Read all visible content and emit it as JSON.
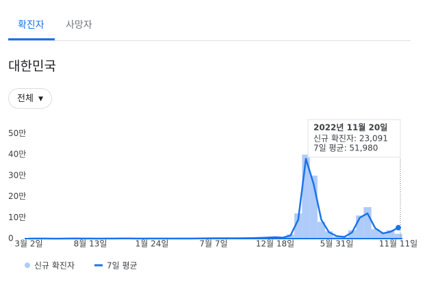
{
  "tabs": [
    "확진자",
    "사망자"
  ],
  "region": "대한민국",
  "filter": "전체",
  "chart_data": {
    "type": "area-line",
    "categories": [
      "3월 2일",
      null,
      null,
      null,
      null,
      null,
      null,
      null,
      "8월 13일",
      null,
      null,
      null,
      null,
      null,
      null,
      null,
      "1월 24일",
      null,
      null,
      null,
      null,
      null,
      null,
      null,
      "7월 7일",
      null,
      null,
      null,
      null,
      null,
      null,
      null,
      "12월 18일",
      null,
      null,
      null,
      null,
      null,
      null,
      null,
      "5월 31일",
      null,
      null,
      null,
      null,
      null,
      null,
      null,
      "11월 11일"
    ],
    "series": [
      {
        "name": "신규 확진자",
        "color": "#aecbfa",
        "values": [
          150,
          600,
          250,
          250,
          100,
          400,
          900,
          350,
          250,
          250,
          450,
          350,
          1100,
          900,
          700,
          450,
          450,
          550,
          450,
          650,
          550,
          700,
          650,
          1300,
          1700,
          1600,
          1900,
          1500,
          2200,
          2400,
          3800,
          5500,
          7500,
          4000,
          20000,
          120000,
          400000,
          300000,
          80000,
          35000,
          10000,
          7000,
          40000,
          110000,
          150000,
          45000,
          30000,
          40000,
          23091
        ]
      },
      {
        "name": "7일 평균",
        "color": "#1a73e8",
        "values": [
          200,
          500,
          300,
          200,
          150,
          300,
          1000,
          300,
          300,
          200,
          400,
          400,
          1000,
          1000,
          600,
          500,
          400,
          500,
          500,
          600,
          600,
          600,
          700,
          1200,
          1500,
          1700,
          1800,
          1600,
          2000,
          2500,
          3500,
          5000,
          7000,
          4500,
          15000,
          90000,
          380000,
          260000,
          90000,
          30000,
          12000,
          8000,
          30000,
          100000,
          120000,
          50000,
          25000,
          33000,
          51980
        ]
      }
    ],
    "ylim": [
      0,
      560000
    ],
    "yticks": [
      0,
      {
        "value": 100000,
        "label": "10만"
      },
      {
        "value": 200000,
        "label": "20만"
      },
      {
        "value": 300000,
        "label": "30만"
      },
      {
        "value": 400000,
        "label": "40만"
      },
      {
        "value": 500000,
        "label": "50만"
      }
    ],
    "grid": false,
    "tooltip": {
      "title": "2022년 11월 20일",
      "lines": [
        "신규 확진자: 23,091",
        "7일 평균: 51,980"
      ]
    }
  }
}
